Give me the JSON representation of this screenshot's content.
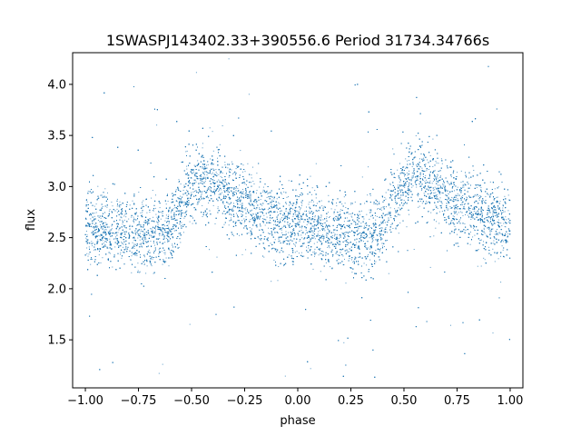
{
  "chart_data": {
    "type": "scatter",
    "title": "1SWASPJ143402.33+390556.6 Period 31734.34766s",
    "xlabel": "phase",
    "ylabel": "flux",
    "xlim": [
      -1.06,
      1.06
    ],
    "ylim": [
      1.03,
      4.31
    ],
    "xticks": [
      -1.0,
      -0.75,
      -0.5,
      -0.25,
      0.0,
      0.25,
      0.5,
      0.75,
      1.0
    ],
    "xtick_labels": [
      "−1.00",
      "−0.75",
      "−0.50",
      "−0.25",
      "0.00",
      "0.25",
      "0.50",
      "0.75",
      "1.00"
    ],
    "yticks": [
      1.5,
      2.0,
      2.5,
      3.0,
      3.5,
      4.0
    ],
    "ytick_labels": [
      "1.5",
      "2.0",
      "2.5",
      "3.0",
      "3.5",
      "4.0"
    ],
    "grid": false,
    "point_color": "#1f77b4",
    "series": [
      {
        "x_range": [
          -1.0,
          1.0
        ],
        "mean_flux_curve": {
          "phase": [
            -1.0,
            -0.9,
            -0.8,
            -0.7,
            -0.6,
            -0.55,
            -0.5,
            -0.45,
            -0.4,
            -0.3,
            -0.2,
            -0.1,
            0.0,
            0.1,
            0.2,
            0.3,
            0.4,
            0.45,
            0.5,
            0.55,
            0.6,
            0.7,
            0.8,
            0.9,
            1.0
          ],
          "flux": [
            2.6,
            2.58,
            2.55,
            2.53,
            2.6,
            2.78,
            3.0,
            3.08,
            3.05,
            2.9,
            2.75,
            2.66,
            2.6,
            2.56,
            2.53,
            2.52,
            2.62,
            2.8,
            3.0,
            3.08,
            3.05,
            2.9,
            2.78,
            2.68,
            2.62
          ]
        },
        "scatter_sigma": 0.18,
        "approx_points": 14000
      }
    ]
  }
}
